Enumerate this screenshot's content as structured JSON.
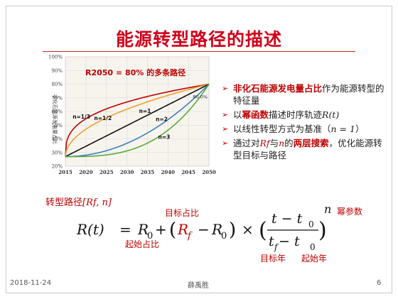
{
  "slide": {
    "title": "能源转型路径的描述",
    "footer_date": "2018-11-24",
    "footer_author": "薛禹胜",
    "footer_page": "6"
  },
  "bullets": {
    "b1_red": "非化石能源发电量占比",
    "b1_rest": "作为能源转型的特征量",
    "b2_pre": "以",
    "b2_red": "幂函数",
    "b2_mid": "描述时序轨迹",
    "b2_math": "R(t)",
    "b3": "以线性转型方式为基准（",
    "b3_math": "n = 1",
    "b3_end": "）",
    "b4_pre": "通过对",
    "b4_m1": "Rf",
    "b4_and": "与",
    "b4_m2": "n",
    "b4_of": "的",
    "b4_red": "两层搜索",
    "b4_rest": "，优化能源转型目标与路径"
  },
  "formula": {
    "label": "转型路径",
    "label_math": "[Rf, n]",
    "lhs": "R(t)",
    "eq": "=",
    "r0": "R",
    "r0_sub": "0",
    "plus": "+",
    "rf": "R",
    "rf_sub": "f",
    "minus": "−",
    "times": "×",
    "num": "t − t",
    "num_sub": "0",
    "den": "t",
    "den_sub1": "f",
    "den_mid": " − t",
    "den_sub2": "0",
    "exp": "n",
    "ann_target": "目标占比",
    "ann_start": "起始占比",
    "ann_exp": "幂参数",
    "ann_target_year": "目标年",
    "ann_start_year": "起始年"
  },
  "chart_data": {
    "type": "line",
    "title": "R2050 = 80% 的多条路径",
    "ylabel": "非化石能源发电量占比",
    "x": [
      2015,
      2020,
      2025,
      2030,
      2035,
      2040,
      2045,
      2050
    ],
    "xlim": [
      2015,
      2050
    ],
    "ylim": [
      20,
      100
    ],
    "yticks": [
      "20%",
      "30%",
      "40%",
      "50%",
      "60%",
      "70%",
      "80%",
      "90%",
      "100%"
    ],
    "grid": true,
    "start_value": 27,
    "end_value": 80,
    "end_label": "80.0%",
    "series": [
      {
        "name": "n=1/3",
        "exponent": 0.3333,
        "color": "#c00000"
      },
      {
        "name": "n=1/2",
        "exponent": 0.5,
        "color": "#f0a030"
      },
      {
        "name": "n=1",
        "exponent": 1,
        "color": "#111111"
      },
      {
        "name": "n=2",
        "exponent": 2,
        "color": "#3a7fc0"
      },
      {
        "name": "n=3",
        "exponent": 3,
        "color": "#5aaa3a"
      }
    ]
  }
}
